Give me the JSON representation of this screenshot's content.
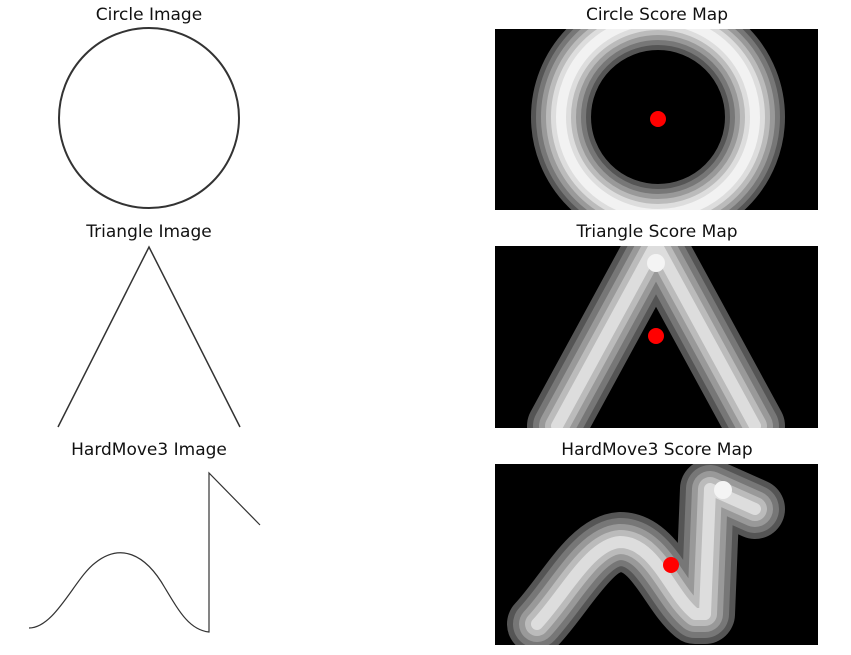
{
  "figure": {
    "rows": [
      {
        "id": "circle",
        "image_title": "Circle Image",
        "map_title": "Circle Score Map",
        "shape_icon": "circle-outline",
        "marker_color": "#ff0000"
      },
      {
        "id": "triangle",
        "image_title": "Triangle Image",
        "map_title": "Triangle Score Map",
        "shape_icon": "triangle-outline",
        "marker_color": "#ff0000"
      },
      {
        "id": "hardmove3",
        "image_title": "HardMove3 Image",
        "map_title": "HardMove3 Score Map",
        "shape_icon": "wave-step-curve",
        "marker_color": "#ff0000"
      }
    ],
    "colors": {
      "map_background": "#000000",
      "stroke": "#333333",
      "marker": "#ff0000"
    }
  }
}
